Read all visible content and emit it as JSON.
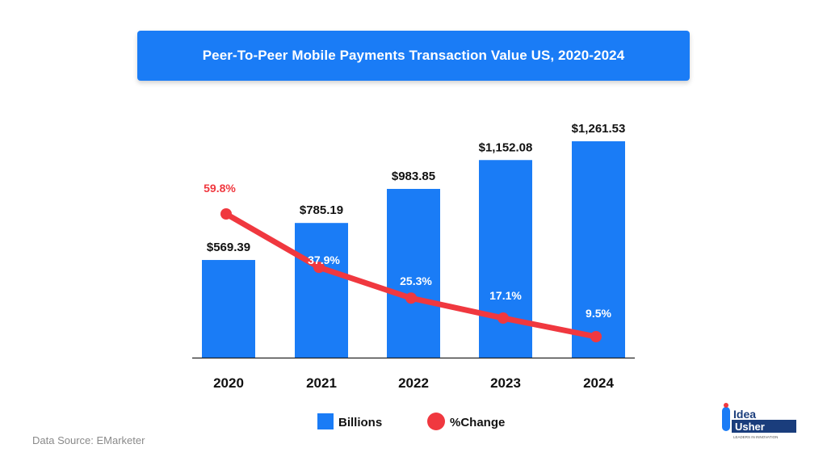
{
  "title": "Peer-To-Peer Mobile Payments Transaction Value US, 2020-2024",
  "source": "Data Source: EMarketer",
  "logo": {
    "word1": "Idea",
    "word2": "Usher",
    "tagline": "LEADERS IN INNOVATION"
  },
  "colors": {
    "bar": "#1a7cf6",
    "line": "#f0383f",
    "axis": "#222222",
    "text": "#111111",
    "banner": "#1a7cf6"
  },
  "chart_data": {
    "type": "bar",
    "title": "Peer-To-Peer Mobile Payments Transaction Value US, 2020-2024",
    "categories": [
      "2020",
      "2021",
      "2022",
      "2023",
      "2024"
    ],
    "series": [
      {
        "name": "Billions",
        "type": "bar",
        "values": [
          569.39,
          785.19,
          983.85,
          1152.08,
          1261.53
        ],
        "labels": [
          "$569.39",
          "$785.19",
          "$983.85",
          "$1,152.08",
          "$1,261.53"
        ]
      },
      {
        "name": "%Change",
        "type": "line",
        "values": [
          59.8,
          37.9,
          25.3,
          17.1,
          9.5
        ],
        "labels": [
          "59.8%",
          "37.9%",
          "25.3%",
          "17.1%",
          "9.5%"
        ]
      }
    ],
    "legend": [
      "Billions",
      "%Change"
    ],
    "legend_position": "bottom",
    "grid": false,
    "xlabel": "",
    "ylabel": ""
  }
}
